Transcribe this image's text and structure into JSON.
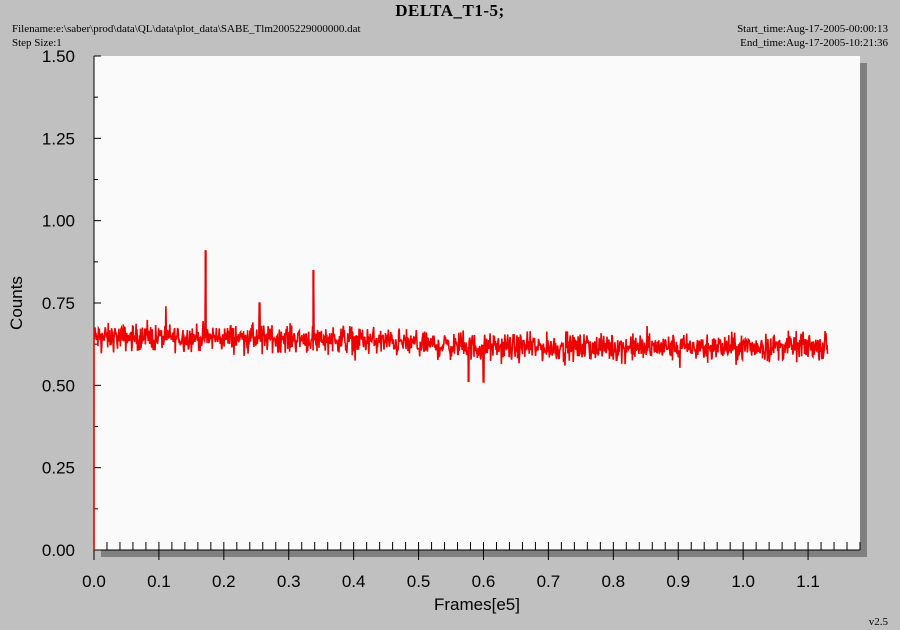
{
  "header": {
    "title": "DELTA_T1-5;",
    "filename": "Filename:e:\\saber\\prod\\data\\QL\\data\\plot_data\\SABE_Tlm2005229000000.dat",
    "step_size": "Step Size:1",
    "start_time": "Start_time:Aug-17-2005-00:00:13",
    "end_time": "End_time:Aug-17-2005-10:21:36"
  },
  "footer": {
    "version": "v2.5"
  },
  "colors": {
    "background": "#c0c0c0",
    "plot_area": "#fafafa",
    "shadow": "#808080",
    "series": "#ee0000"
  },
  "chart_data": {
    "type": "line",
    "title": "DELTA_T1-5;",
    "xlabel": "Frames[e5]",
    "ylabel": "Counts",
    "xlim": [
      0.0,
      1.18
    ],
    "ylim": [
      0.0,
      1.5
    ],
    "xticks": [
      "0.0",
      "0.1",
      "0.2",
      "0.3",
      "0.4",
      "0.5",
      "0.6",
      "0.7",
      "0.8",
      "0.9",
      "1.0",
      "1.1"
    ],
    "yticks": [
      "0.00",
      "0.25",
      "0.50",
      "0.75",
      "1.00",
      "1.25",
      "1.50"
    ],
    "grid": false,
    "series": [
      {
        "color": "#ee0000",
        "x_range": [
          0.0,
          1.13
        ],
        "baseline": [
          [
            0.0,
            0.645
          ],
          [
            0.2,
            0.645
          ],
          [
            0.4,
            0.64
          ],
          [
            0.5,
            0.625
          ],
          [
            0.6,
            0.615
          ],
          [
            0.8,
            0.615
          ],
          [
            1.0,
            0.615
          ],
          [
            1.13,
            0.62
          ]
        ],
        "typical_band": [
          0.55,
          0.71
        ],
        "start_point": [
          0.0,
          0.0
        ],
        "spikes": [
          {
            "x": 0.172,
            "y": 0.91
          },
          {
            "x": 0.338,
            "y": 0.85
          },
          {
            "x": 0.255,
            "y": 0.75
          },
          {
            "x": 0.577,
            "y": 0.51
          },
          {
            "x": 0.6,
            "y": 0.51
          }
        ]
      }
    ]
  }
}
